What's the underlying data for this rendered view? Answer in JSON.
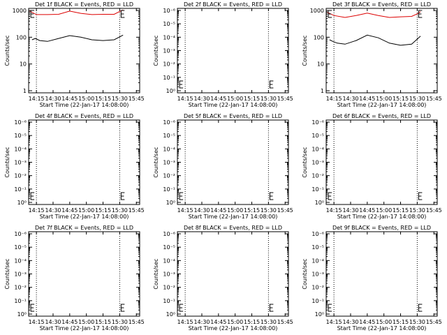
{
  "chart_data": [
    {
      "type": "line",
      "title": "Det 1f BLACK = Events, RED = LLD",
      "xlabel": "Start Time (22-Jan-17 14:08:00)",
      "ylabel": "Counts/sec",
      "yscale": "log",
      "ylim": [
        1,
        1000
      ],
      "yticks": [
        "1",
        "10",
        "100",
        "1000"
      ],
      "xticks": [
        "14:15",
        "14:30",
        "14:45",
        "15:00",
        "15:15",
        "15:30",
        "15:45"
      ],
      "vlines": [
        "14:15",
        "15:30"
      ],
      "series": [
        {
          "color": "#dd0000",
          "x": [
            "14:09",
            "14:15",
            "14:25",
            "14:35",
            "14:45",
            "14:55",
            "15:05",
            "15:15",
            "15:25",
            "15:30",
            "15:33"
          ],
          "values": [
            950,
            700,
            700,
            720,
            950,
            780,
            700,
            720,
            720,
            920,
            1050
          ]
        },
        {
          "color": "#000000",
          "x": [
            "14:11",
            "14:14",
            "14:18",
            "14:25",
            "14:35",
            "14:45",
            "14:55",
            "15:05",
            "15:15",
            "15:25",
            "15:33"
          ],
          "values": [
            80,
            90,
            75,
            70,
            90,
            115,
            100,
            80,
            75,
            80,
            120
          ]
        }
      ]
    },
    {
      "type": "line",
      "title": "Det 2f BLACK = Events, RED = LLD",
      "xlabel": "Start Time (22-Jan-17 14:08:00)",
      "ylabel": "Counts/sec",
      "yscale": "log",
      "yticks": [
        "10⁰",
        "10⁻¹",
        "10⁻²",
        "10⁻³",
        "10⁻⁴",
        "10⁻⁵",
        "10⁻⁶"
      ],
      "xticks": [
        "14:15",
        "14:30",
        "14:45",
        "15:00",
        "15:15",
        "15:30",
        "15:45"
      ],
      "vlines": [
        "14:15",
        "15:30"
      ],
      "series": []
    },
    {
      "type": "line",
      "title": "Det 3f BLACK = Events, RED = LLD",
      "xlabel": "Start Time (22-Jan-17 14:08:00)",
      "ylabel": "Counts/sec",
      "yscale": "log",
      "ylim": [
        1,
        1000
      ],
      "yticks": [
        "1",
        "10",
        "100",
        "1000"
      ],
      "xticks": [
        "14:15",
        "14:30",
        "14:45",
        "15:00",
        "15:15",
        "15:30",
        "15:45"
      ],
      "vlines": [
        "14:15",
        "15:30"
      ],
      "series": [
        {
          "color": "#dd0000",
          "x": [
            "14:09",
            "14:15",
            "14:25",
            "14:35",
            "14:45",
            "14:55",
            "15:05",
            "15:15",
            "15:25",
            "15:30",
            "15:33"
          ],
          "values": [
            850,
            650,
            550,
            650,
            800,
            650,
            550,
            580,
            600,
            750,
            900
          ]
        },
        {
          "color": "#000000",
          "x": [
            "14:11",
            "14:14",
            "14:18",
            "14:25",
            "14:35",
            "14:45",
            "14:55",
            "15:05",
            "15:15",
            "15:25",
            "15:33"
          ],
          "values": [
            80,
            70,
            60,
            55,
            75,
            120,
            95,
            60,
            50,
            55,
            110
          ]
        }
      ]
    },
    {
      "type": "line",
      "title": "Det 4f BLACK = Events, RED = LLD",
      "xlabel": "Start Time (22-Jan-17 14:08:00)",
      "ylabel": "Counts/sec",
      "yscale": "log",
      "yticks": [
        "10⁰",
        "10⁻¹",
        "10⁻²",
        "10⁻³",
        "10⁻⁴",
        "10⁻⁵",
        "10⁻⁶"
      ],
      "xticks": [
        "14:15",
        "14:30",
        "14:45",
        "15:00",
        "15:15",
        "15:30",
        "15:45"
      ],
      "vlines": [
        "14:15",
        "15:30"
      ],
      "series": []
    },
    {
      "type": "line",
      "title": "Det 5f BLACK = Events, RED = LLD",
      "xlabel": "Start Time (22-Jan-17 14:08:00)",
      "ylabel": "Counts/sec",
      "yscale": "log",
      "yticks": [
        "10⁰",
        "10⁻¹",
        "10⁻²",
        "10⁻³",
        "10⁻⁴",
        "10⁻⁵",
        "10⁻⁶"
      ],
      "xticks": [
        "14:15",
        "14:30",
        "14:45",
        "15:00",
        "15:15",
        "15:30",
        "15:45"
      ],
      "vlines": [
        "14:15",
        "15:30"
      ],
      "series": []
    },
    {
      "type": "line",
      "title": "Det 6f BLACK = Events, RED = LLD",
      "xlabel": "Start Time (22-Jan-17 14:08:00)",
      "ylabel": "Counts/sec",
      "yscale": "log",
      "yticks": [
        "10⁰",
        "10⁻¹",
        "10⁻²",
        "10⁻³",
        "10⁻⁴",
        "10⁻⁵",
        "10⁻⁶"
      ],
      "xticks": [
        "14:15",
        "14:30",
        "14:45",
        "15:00",
        "15:15",
        "15:30",
        "15:45"
      ],
      "vlines": [
        "14:15",
        "15:30"
      ],
      "series": []
    },
    {
      "type": "line",
      "title": "Det 7f BLACK = Events, RED = LLD",
      "xlabel": "Start Time (22-Jan-17 14:08:00)",
      "ylabel": "Counts/sec",
      "yscale": "log",
      "yticks": [
        "10⁰",
        "10⁻¹",
        "10⁻²",
        "10⁻³",
        "10⁻⁴",
        "10⁻⁵",
        "10⁻⁶"
      ],
      "xticks": [
        "14:15",
        "14:30",
        "14:45",
        "15:00",
        "15:15",
        "15:30",
        "15:45"
      ],
      "vlines": [
        "14:15",
        "15:30"
      ],
      "series": []
    },
    {
      "type": "line",
      "title": "Det 8f BLACK = Events, RED = LLD",
      "xlabel": "Start Time (22-Jan-17 14:08:00)",
      "ylabel": "Counts/sec",
      "yscale": "log",
      "yticks": [
        "10⁰",
        "10⁻¹",
        "10⁻²",
        "10⁻³",
        "10⁻⁴",
        "10⁻⁵",
        "10⁻⁶"
      ],
      "xticks": [
        "14:15",
        "14:30",
        "14:45",
        "15:00",
        "15:15",
        "15:30",
        "15:45"
      ],
      "vlines": [
        "14:15",
        "15:30"
      ],
      "series": []
    },
    {
      "type": "line",
      "title": "Det 9f BLACK = Events, RED = LLD",
      "xlabel": "Start Time (22-Jan-17 14:08:00)",
      "ylabel": "Counts/sec",
      "yscale": "log",
      "yticks": [
        "10⁰",
        "10⁻¹",
        "10⁻²",
        "10⁻³",
        "10⁻⁴",
        "10⁻⁵",
        "10⁻⁶"
      ],
      "xticks": [
        "14:15",
        "14:30",
        "14:45",
        "15:00",
        "15:15",
        "15:30",
        "15:45"
      ],
      "vlines": [
        "14:15",
        "15:30"
      ],
      "series": []
    }
  ]
}
